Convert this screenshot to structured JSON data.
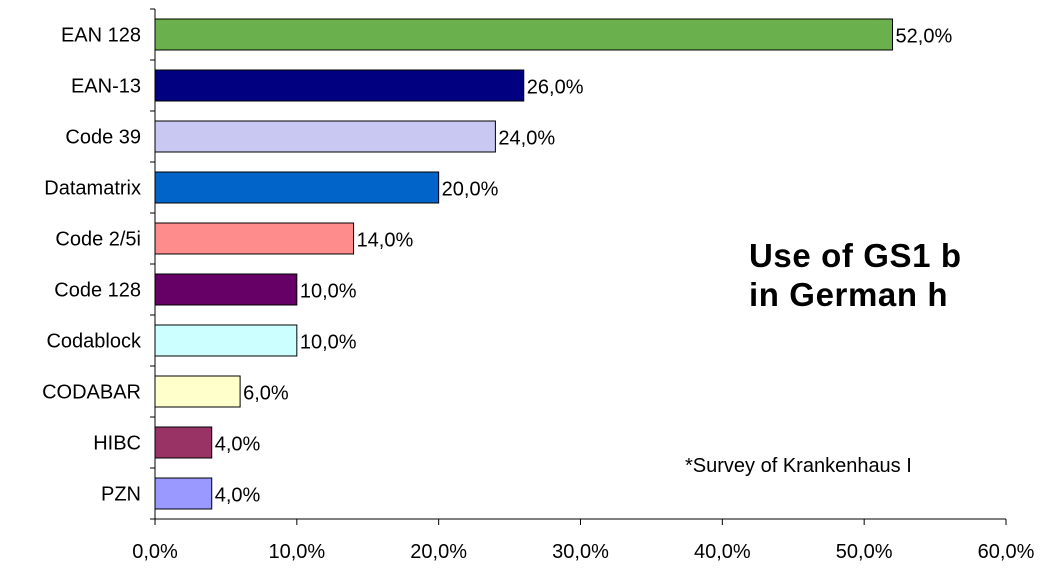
{
  "chart_data": {
    "type": "bar",
    "orientation": "horizontal",
    "categories": [
      "EAN 128",
      "EAN-13",
      "Code 39",
      "Datamatrix",
      "Code 2/5i",
      "Code 128",
      "Codablock",
      "CODABAR",
      "HIBC",
      "PZN"
    ],
    "values": [
      52.0,
      26.0,
      24.0,
      20.0,
      14.0,
      10.0,
      10.0,
      6.0,
      4.0,
      4.0
    ],
    "value_labels": [
      "52,0%",
      "26,0%",
      "24,0%",
      "20,0%",
      "14,0%",
      "10,0%",
      "10,0%",
      "6,0%",
      "4,0%",
      "4,0%"
    ],
    "bar_colors": [
      "#6AB04C",
      "#000080",
      "#C8C8F2",
      "#0064C8",
      "#FF8C8C",
      "#660066",
      "#CCFFFF",
      "#FFFFCC",
      "#993366",
      "#9999FF"
    ],
    "xlim": [
      0,
      60
    ],
    "xticks": [
      0,
      10,
      20,
      30,
      40,
      50,
      60
    ],
    "xtick_labels": [
      "0,0%",
      "10,0%",
      "20,0%",
      "30,0%",
      "40,0%",
      "50,0%",
      "60,0%"
    ],
    "grid": false,
    "title_lines": [
      "Use of GS1 b",
      "in German h"
    ],
    "annotation": "*Survey of Krankenhaus I"
  }
}
